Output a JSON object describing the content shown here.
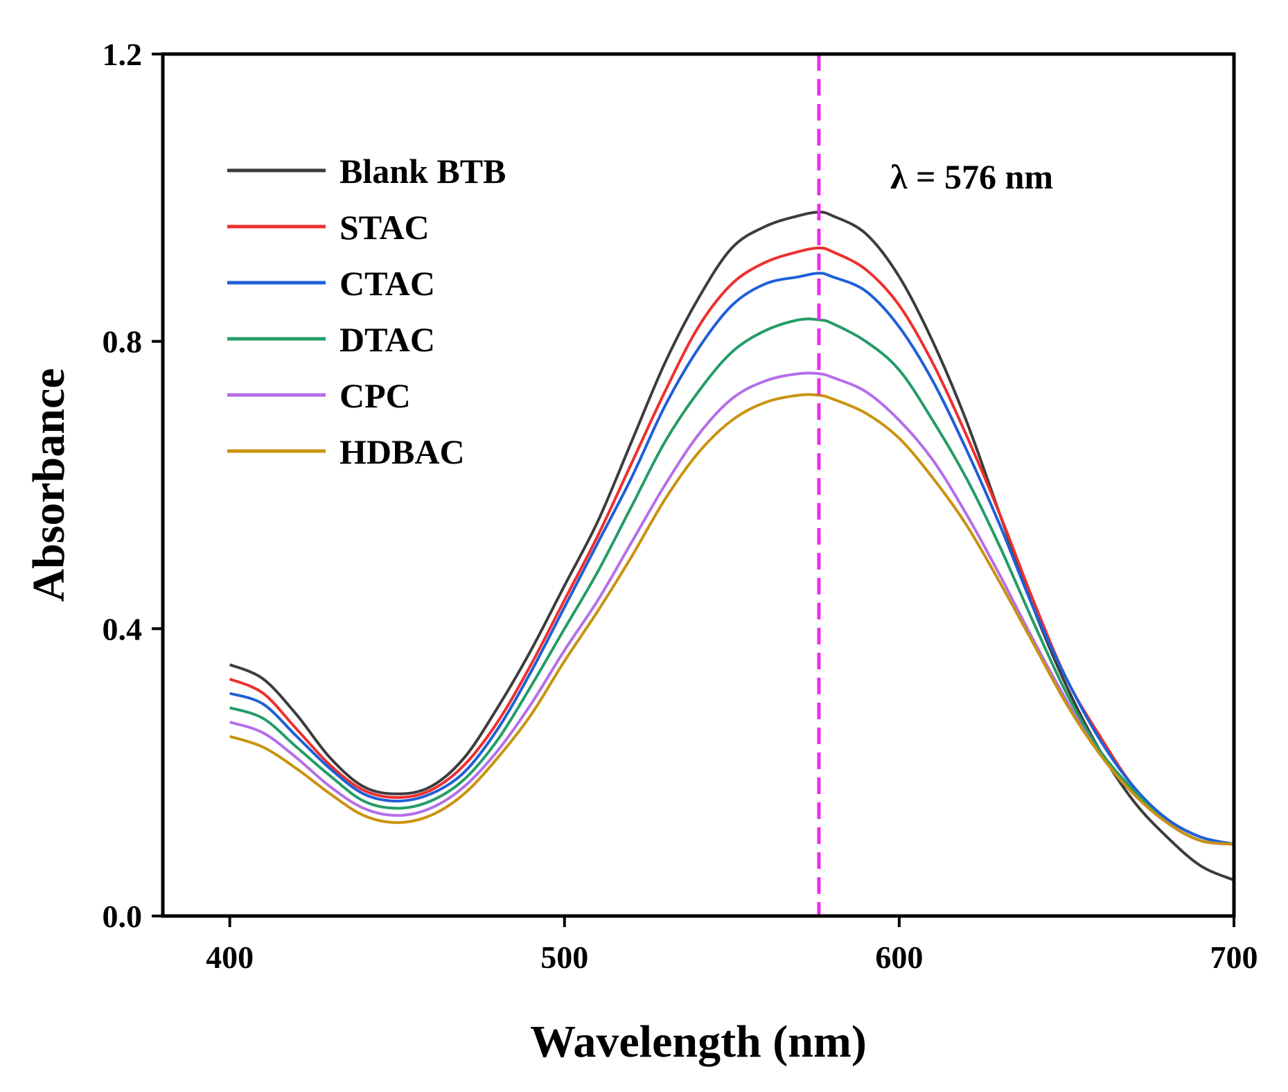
{
  "chart_data": {
    "type": "line",
    "title": "",
    "xlabel": "Wavelength (nm)",
    "ylabel": "Absorbance",
    "xlim": [
      380,
      700
    ],
    "ylim": [
      0.0,
      1.2
    ],
    "xticks": [
      400,
      500,
      600,
      700
    ],
    "yticks": [
      0.0,
      0.4,
      0.8,
      1.2
    ],
    "xtick_labels": [
      "400",
      "500",
      "600",
      "700"
    ],
    "ytick_labels": [
      "0.0",
      "0.4",
      "0.8",
      "1.2"
    ],
    "grid": false,
    "legend_position": "top-left",
    "reference_line": {
      "x": 576,
      "style": "dashed",
      "color": "#ee2cee"
    },
    "annotation": {
      "text": "λ = 576 nm"
    },
    "x": [
      400,
      410,
      420,
      430,
      440,
      450,
      460,
      470,
      480,
      490,
      500,
      510,
      520,
      530,
      540,
      550,
      560,
      570,
      576,
      580,
      590,
      600,
      610,
      620,
      630,
      640,
      650,
      660,
      670,
      680,
      690,
      700
    ],
    "series": [
      {
        "name": "Blank BTB",
        "color": "#3c3c3c",
        "values": [
          0.35,
          0.33,
          0.28,
          0.22,
          0.18,
          0.17,
          0.18,
          0.22,
          0.29,
          0.37,
          0.46,
          0.55,
          0.66,
          0.77,
          0.86,
          0.93,
          0.96,
          0.975,
          0.98,
          0.975,
          0.95,
          0.89,
          0.8,
          0.69,
          0.56,
          0.43,
          0.32,
          0.23,
          0.16,
          0.11,
          0.07,
          0.05
        ]
      },
      {
        "name": "STAC",
        "color": "#ee2f2f",
        "values": [
          0.33,
          0.31,
          0.26,
          0.21,
          0.175,
          0.165,
          0.175,
          0.21,
          0.27,
          0.35,
          0.44,
          0.53,
          0.63,
          0.73,
          0.82,
          0.88,
          0.91,
          0.925,
          0.93,
          0.925,
          0.9,
          0.85,
          0.77,
          0.67,
          0.56,
          0.44,
          0.33,
          0.25,
          0.18,
          0.135,
          0.11,
          0.1
        ]
      },
      {
        "name": "CTAC",
        "color": "#1e5fd8",
        "values": [
          0.31,
          0.295,
          0.25,
          0.205,
          0.17,
          0.16,
          0.17,
          0.2,
          0.26,
          0.34,
          0.43,
          0.52,
          0.61,
          0.71,
          0.79,
          0.85,
          0.88,
          0.89,
          0.895,
          0.89,
          0.87,
          0.82,
          0.745,
          0.65,
          0.545,
          0.43,
          0.33,
          0.245,
          0.18,
          0.135,
          0.11,
          0.1
        ]
      },
      {
        "name": "DTAC",
        "color": "#239c66",
        "values": [
          0.29,
          0.275,
          0.235,
          0.195,
          0.16,
          0.15,
          0.16,
          0.19,
          0.245,
          0.32,
          0.4,
          0.48,
          0.57,
          0.66,
          0.73,
          0.785,
          0.815,
          0.83,
          0.83,
          0.825,
          0.8,
          0.76,
          0.69,
          0.61,
          0.515,
          0.41,
          0.31,
          0.23,
          0.175,
          0.13,
          0.105,
          0.1
        ]
      },
      {
        "name": "CPC",
        "color": "#b56ee8",
        "values": [
          0.27,
          0.255,
          0.22,
          0.18,
          0.15,
          0.14,
          0.15,
          0.18,
          0.23,
          0.295,
          0.37,
          0.44,
          0.52,
          0.6,
          0.67,
          0.72,
          0.745,
          0.755,
          0.755,
          0.75,
          0.73,
          0.69,
          0.635,
          0.56,
          0.475,
          0.385,
          0.3,
          0.225,
          0.17,
          0.13,
          0.105,
          0.1
        ]
      },
      {
        "name": "HDBAC",
        "color": "#c9930e",
        "values": [
          0.25,
          0.235,
          0.205,
          0.17,
          0.14,
          0.13,
          0.14,
          0.17,
          0.22,
          0.28,
          0.355,
          0.425,
          0.5,
          0.58,
          0.645,
          0.69,
          0.715,
          0.725,
          0.725,
          0.72,
          0.7,
          0.665,
          0.61,
          0.545,
          0.465,
          0.38,
          0.295,
          0.225,
          0.17,
          0.13,
          0.105,
          0.1
        ]
      }
    ]
  }
}
